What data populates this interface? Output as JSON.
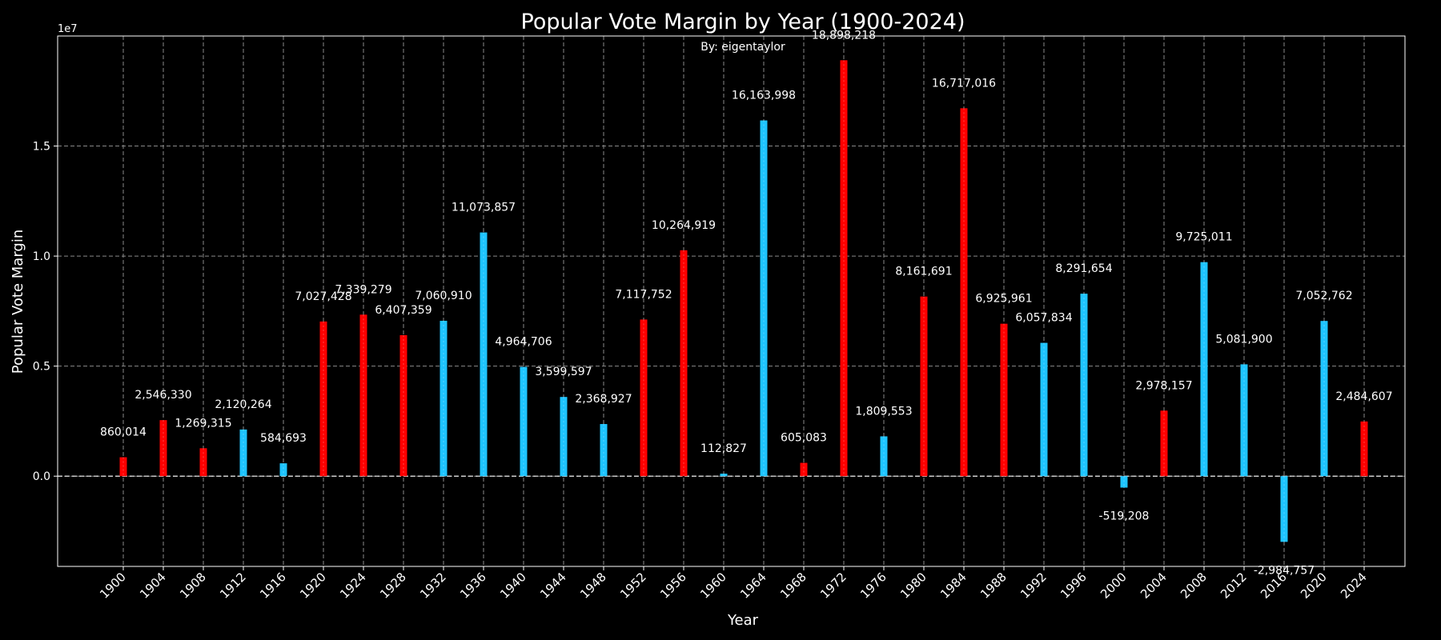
{
  "chart_data": {
    "type": "bar",
    "title": "Popular Vote Margin by Year (1900-2024)",
    "subtitle": "By: eigentaylor",
    "xlabel": "Year",
    "ylabel": "Popular Vote Margin",
    "y_offset_text": "1e7",
    "ylim": [
      -4100000,
      20000000
    ],
    "yticks": [
      0,
      5000000,
      10000000,
      15000000
    ],
    "ytick_labels": [
      "0.0",
      "0.5",
      "1.0",
      "1.5"
    ],
    "grid": true,
    "colors": {
      "red": "#ff0000",
      "blue": "#1ec4ff"
    },
    "categories": [
      "1900",
      "1904",
      "1908",
      "1912",
      "1916",
      "1920",
      "1924",
      "1928",
      "1932",
      "1936",
      "1940",
      "1944",
      "1948",
      "1952",
      "1956",
      "1960",
      "1964",
      "1968",
      "1972",
      "1976",
      "1980",
      "1984",
      "1988",
      "1992",
      "1996",
      "2000",
      "2004",
      "2008",
      "2012",
      "2016",
      "2020",
      "2024"
    ],
    "values": [
      860014,
      2546330,
      1269315,
      2120264,
      584693,
      7027428,
      7339279,
      6407359,
      7060910,
      11073857,
      4964706,
      3599597,
      2368927,
      7117752,
      10264919,
      112827,
      16163998,
      605083,
      18898218,
      1809553,
      8161691,
      16717016,
      6925961,
      6057834,
      8291654,
      -519208,
      2978157,
      9725011,
      5081900,
      -2984757,
      7052762,
      2484607
    ],
    "value_labels": [
      "860,014",
      "2,546,330",
      "1,269,315",
      "2,120,264",
      "584,693",
      "7,027,428",
      "7,339,279",
      "6,407,359",
      "7,060,910",
      "11,073,857",
      "4,964,706",
      "3,599,597",
      "2,368,927",
      "7,117,752",
      "10,264,919",
      "112,827",
      "16,163,998",
      "605,083",
      "18,898,218",
      "1,809,553",
      "8,161,691",
      "16,717,016",
      "6,925,961",
      "6,057,834",
      "8,291,654",
      "-519,208",
      "2,978,157",
      "9,725,011",
      "5,081,900",
      "-2,984,757",
      "7,052,762",
      "2,484,607"
    ],
    "bar_colors": [
      "red",
      "red",
      "red",
      "blue",
      "blue",
      "red",
      "red",
      "red",
      "blue",
      "blue",
      "blue",
      "blue",
      "blue",
      "red",
      "red",
      "blue",
      "blue",
      "red",
      "red",
      "blue",
      "red",
      "red",
      "red",
      "blue",
      "blue",
      "blue",
      "red",
      "blue",
      "blue",
      "blue",
      "blue",
      "red"
    ]
  }
}
